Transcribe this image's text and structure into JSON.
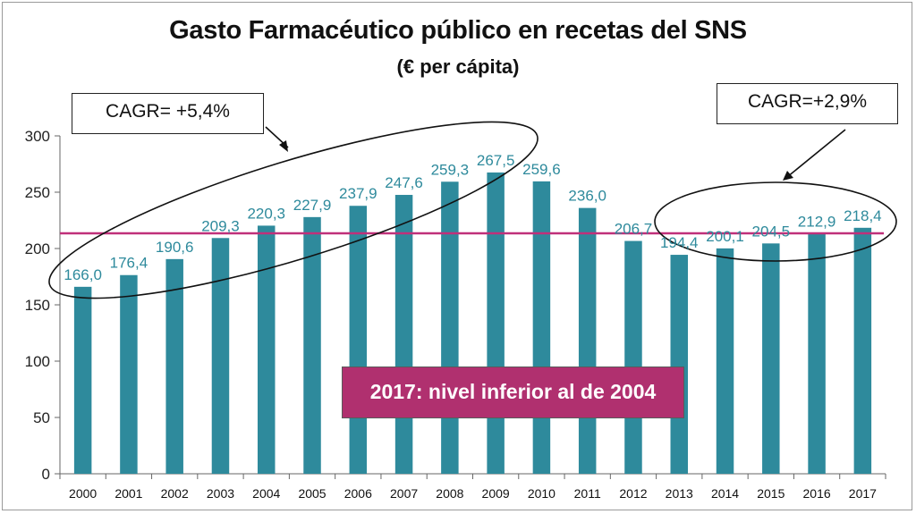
{
  "chart_data": {
    "type": "bar",
    "title": "Gasto Farmacéutico  público en recetas del SNS",
    "subtitle": "(€ per cápita)",
    "categories": [
      "2000",
      "2001",
      "2002",
      "2003",
      "2004",
      "2005",
      "2006",
      "2007",
      "2008",
      "2009",
      "2010",
      "2011",
      "2012",
      "2013",
      "2014",
      "2015",
      "2016",
      "2017"
    ],
    "values": [
      166.0,
      176.4,
      190.6,
      209.3,
      220.3,
      227.9,
      237.9,
      247.6,
      259.3,
      267.5,
      259.6,
      236.0,
      206.7,
      194.4,
      200.1,
      204.5,
      212.9,
      218.4
    ],
    "value_labels": [
      "166,0",
      "176,4",
      "190,6",
      "209,3",
      "220,3",
      "227,9",
      "237,9",
      "247,6",
      "259,3",
      "267,5",
      "259,6",
      "236,0",
      "206,7",
      "194,4",
      "200,1",
      "204,5",
      "212,9",
      "218,4"
    ],
    "ylim": [
      0,
      300
    ],
    "y_ticks": [
      0,
      50,
      100,
      150,
      200,
      250,
      300
    ],
    "reference_line": {
      "value": 213.5,
      "color": "#c0307a"
    },
    "grid": false,
    "bar_color": "#2e8a9c",
    "label_color": "#2e8a9c",
    "annotations": {
      "cagr_left": "CAGR= +5,4%",
      "cagr_right": "CAGR=+2,9%",
      "banner": "2017: nivel inferior al de 2004",
      "banner_color": "#b0306f"
    }
  }
}
